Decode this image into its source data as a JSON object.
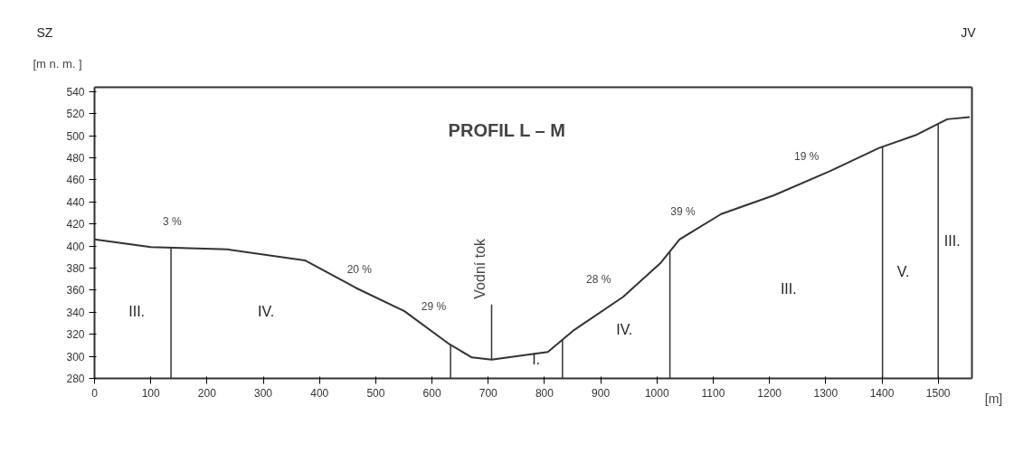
{
  "chart_data": {
    "type": "line",
    "title": "PROFIL  L – M",
    "ylabel": "[m n. m. ]",
    "xlabel": "[m]",
    "x": [
      0,
      100,
      236,
      374,
      465,
      551,
      631,
      671,
      706,
      806,
      853,
      940,
      1007,
      1040,
      1114,
      1208,
      1308,
      1395,
      1462,
      1516,
      1556
    ],
    "series": [
      {
        "color": "#333333",
        "values": [
          406,
          399,
          397,
          387,
          362,
          341,
          311,
          299,
          297,
          304,
          324,
          354,
          385,
          406,
          429,
          446,
          468,
          489,
          501,
          515,
          517
        ]
      }
    ],
    "xlim": [
      0,
      1560
    ],
    "ylim": [
      280,
      544
    ],
    "xticks": [
      0,
      100,
      200,
      300,
      400,
      500,
      600,
      700,
      800,
      900,
      1000,
      1100,
      1200,
      1300,
      1400,
      1500
    ],
    "yticks": [
      280,
      300,
      320,
      340,
      360,
      380,
      400,
      420,
      440,
      460,
      480,
      500,
      520,
      540
    ],
    "grid": false,
    "marker": "none",
    "line_style": "solid",
    "ref_lines": [
      {
        "axis": "x",
        "value": 136
      },
      {
        "axis": "x",
        "value": 633
      },
      {
        "axis": "x",
        "value": 706,
        "label": "Vodní tok"
      },
      {
        "axis": "x",
        "value": 832
      },
      {
        "axis": "x",
        "value": 1023
      },
      {
        "axis": "x",
        "value": 1401
      },
      {
        "axis": "x",
        "value": 1500
      }
    ],
    "annotations": [
      "SZ",
      "JV",
      "3 %",
      "20 %",
      "29 %",
      "28 %",
      "39 %",
      "19 %",
      "III.",
      "IV.",
      "I.",
      "IV.",
      "III.",
      "V.",
      "III."
    ]
  }
}
